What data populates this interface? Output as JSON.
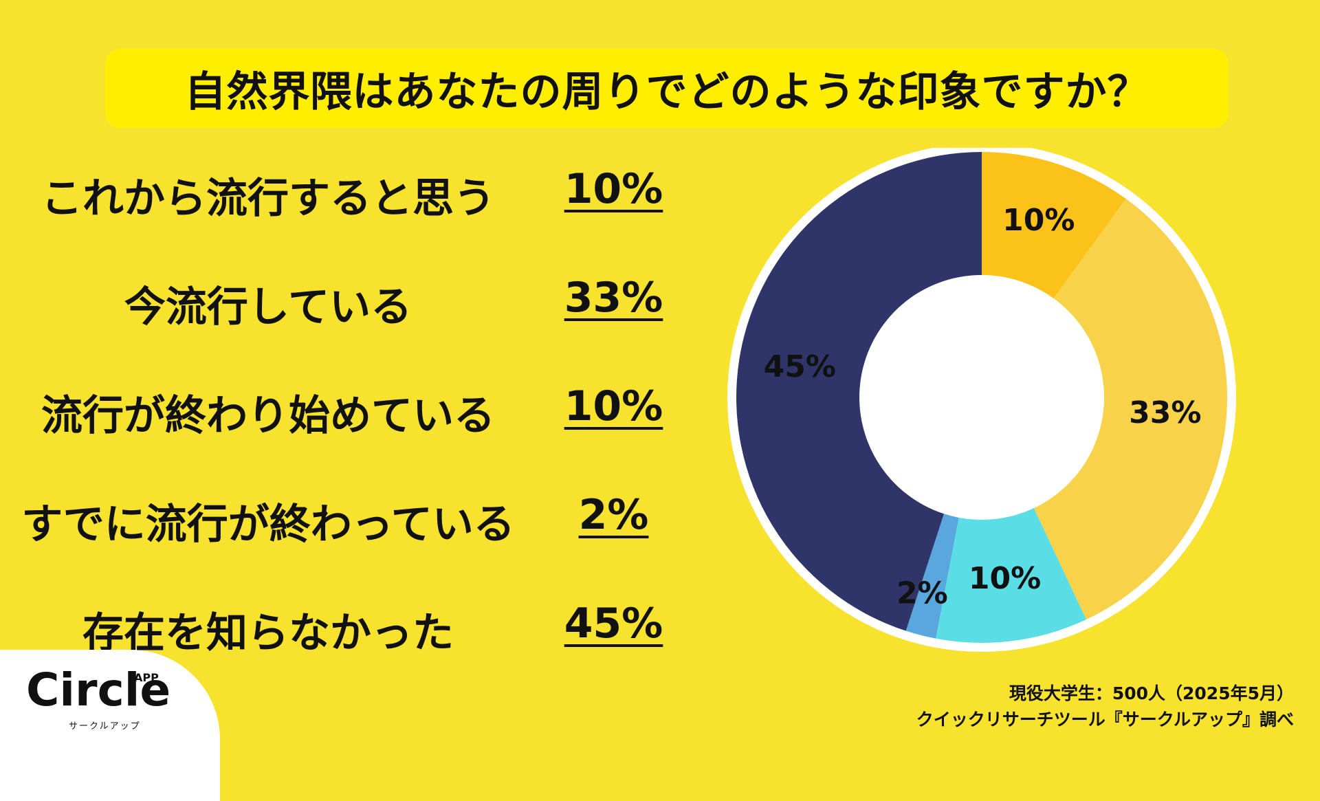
{
  "title": "自然界隈はあなたの周りでどのような印象ですか？",
  "rows": [
    {
      "label": "これから流行すると思う",
      "pct": "10%"
    },
    {
      "label": "今流行している",
      "pct": "33%"
    },
    {
      "label": "流行が終わり始めている",
      "pct": "10%"
    },
    {
      "label": "すでに流行が終わっている",
      "pct": "2%"
    },
    {
      "label": "存在を知らなかった",
      "pct": "45%"
    }
  ],
  "chart_data": {
    "type": "pie",
    "categories": [
      "これから流行すると思う",
      "今流行している",
      "流行が終わり始めている",
      "すでに流行が終わっている",
      "存在を知らなかった"
    ],
    "values": [
      10,
      33,
      10,
      2,
      45
    ],
    "labels": [
      "10%",
      "33%",
      "10%",
      "2%",
      "45%"
    ],
    "colors": [
      "#FBC31A",
      "#F8D249",
      "#5ADDE5",
      "#5AA6DE",
      "#303569"
    ],
    "donut": true
  },
  "logo": {
    "name": "Circle",
    "app": "APP",
    "sub": "サークルアップ"
  },
  "source": {
    "line1": "現役大学生：500人（2025年5月）",
    "line2": "クイックリサーチツール『サークルアップ』調べ"
  }
}
